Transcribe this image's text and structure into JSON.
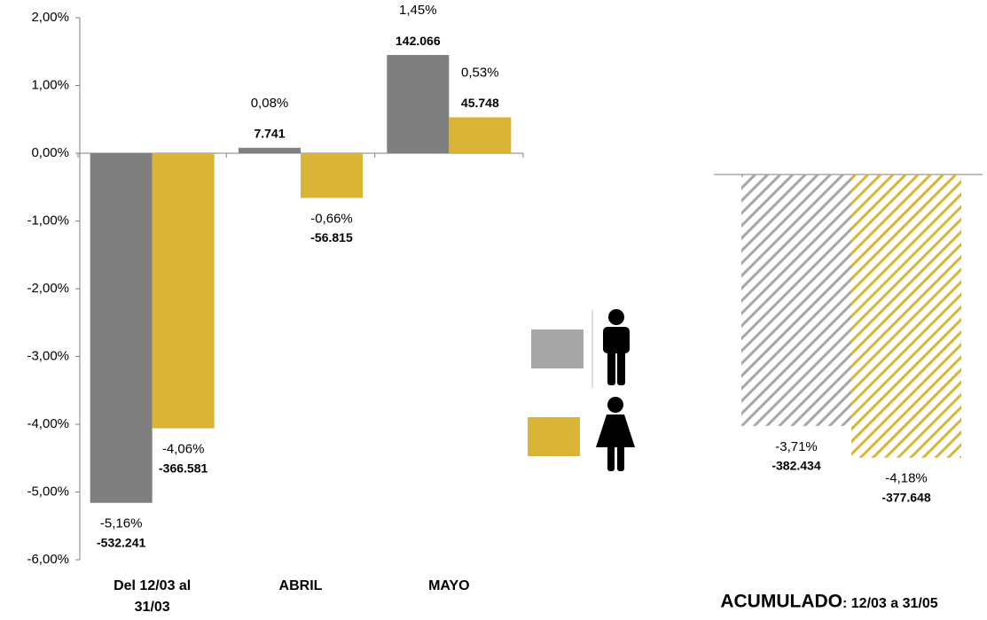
{
  "chart_data": [
    {
      "type": "bar",
      "categories": [
        "Del 12/03 al 31/03",
        "ABRIL",
        "MAYO"
      ],
      "series": [
        {
          "color": "#7f7f7f",
          "values": [
            -5.16,
            0.08,
            1.45
          ],
          "value_labels": [
            "-5,16%",
            "0,08%",
            "1,45%"
          ],
          "counts": [
            -532241,
            7741,
            142066
          ],
          "count_labels": [
            "-532.241",
            "7.741",
            "142.066"
          ]
        },
        {
          "color": "#d9b436",
          "values": [
            -4.06,
            -0.66,
            0.53
          ],
          "value_labels": [
            "-4,06%",
            "-0,66%",
            "0,53%"
          ],
          "counts": [
            -366581,
            -56815,
            45748
          ],
          "count_labels": [
            "-366.581",
            "-56.815",
            "45.748"
          ]
        }
      ],
      "ylim": [
        -6,
        2
      ],
      "yticks": [
        {
          "value": -6,
          "label": "-6,00%"
        },
        {
          "value": -5,
          "label": "-5,00%"
        },
        {
          "value": -4,
          "label": "-4,00%"
        },
        {
          "value": -3,
          "label": "-3,00%"
        },
        {
          "value": -2,
          "label": "-2,00%"
        },
        {
          "value": -1,
          "label": "-1,00%"
        },
        {
          "value": 0,
          "label": "0,00%"
        },
        {
          "value": 1,
          "label": "1,00%"
        },
        {
          "value": 2,
          "label": "2,00%"
        }
      ]
    },
    {
      "type": "hatched-bar",
      "title": "ACUMULADO",
      "subtitle": ": 12/03 a 31/05",
      "series": [
        {
          "color": "#a6a6a6",
          "values": [
            -3.71
          ],
          "value_labels": [
            "-3,71%"
          ],
          "counts": [
            -382434
          ],
          "count_labels": [
            "-382.434"
          ]
        },
        {
          "color": "#d9b436",
          "values": [
            -4.18
          ],
          "value_labels": [
            "-4,18%"
          ],
          "counts": [
            -377648
          ],
          "count_labels": [
            "-377.648"
          ]
        }
      ]
    }
  ]
}
